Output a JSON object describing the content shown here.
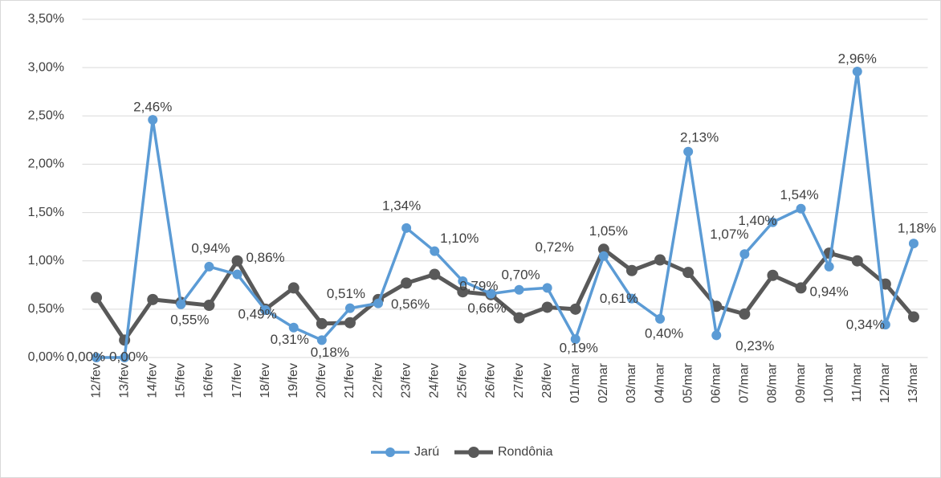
{
  "chart_data": {
    "type": "line",
    "categories": [
      "12/fev",
      "13/fev",
      "14/fev",
      "15/fev",
      "16/fev",
      "17/fev",
      "18/fev",
      "19/fev",
      "20/fev",
      "21/fev",
      "22/fev",
      "23/fev",
      "24/fev",
      "25/fev",
      "26/fev",
      "27/fev",
      "28/fev",
      "01/mar",
      "02/mar",
      "03/mar",
      "04/mar",
      "05/mar",
      "06/mar",
      "07/mar",
      "08/mar",
      "09/mar",
      "10/mar",
      "11/mar",
      "12/mar",
      "13/mar"
    ],
    "series": [
      {
        "name": "Jarú",
        "color": "#5b9bd5",
        "values": [
          0.0,
          0.0,
          2.46,
          0.55,
          0.94,
          0.86,
          0.49,
          0.31,
          0.18,
          0.51,
          0.56,
          1.34,
          1.1,
          0.79,
          0.66,
          0.7,
          0.72,
          0.19,
          1.05,
          0.61,
          0.4,
          2.13,
          0.23,
          1.07,
          1.4,
          1.54,
          0.94,
          2.96,
          0.34,
          1.18
        ],
        "value_labels": [
          "0,00%",
          "0,00%",
          "2,46%",
          "0,55%",
          "0,94%",
          "0,86%",
          "0,49%",
          "0,31%",
          "0,18%",
          "0,51%",
          "0,56%",
          "1,34%",
          "1,10%",
          "0,79%",
          "0,66%",
          "0,70%",
          "0,72%",
          "0,19%",
          "1,05%",
          "0,61%",
          "0,40%",
          "2,13%",
          "0,23%",
          "1,07%",
          "1,40%",
          "1,54%",
          "0,94%",
          "2,96%",
          "0,34%",
          "1,18%"
        ]
      },
      {
        "name": "Rondônia",
        "color": "#595959",
        "values": [
          0.62,
          0.18,
          0.6,
          0.57,
          0.54,
          1.0,
          0.5,
          0.72,
          0.35,
          0.36,
          0.6,
          0.77,
          0.86,
          0.68,
          0.65,
          0.41,
          0.52,
          0.5,
          1.12,
          0.9,
          1.01,
          0.88,
          0.53,
          0.45,
          0.85,
          0.72,
          1.08,
          1.0,
          0.76,
          0.42
        ]
      }
    ],
    "ylim": [
      0,
      3.5
    ],
    "yticks": [
      {
        "value": 0,
        "label": "0,00%"
      },
      {
        "value": 0.5,
        "label": "0,50%"
      },
      {
        "value": 1,
        "label": "1,00%"
      },
      {
        "value": 1.5,
        "label": "1,50%"
      },
      {
        "value": 2,
        "label": "2,00%"
      },
      {
        "value": 2.5,
        "label": "2,50%"
      },
      {
        "value": 3,
        "label": "3,00%"
      },
      {
        "value": 3.5,
        "label": "3,50%"
      }
    ],
    "grid": true,
    "legend": "bottom"
  }
}
